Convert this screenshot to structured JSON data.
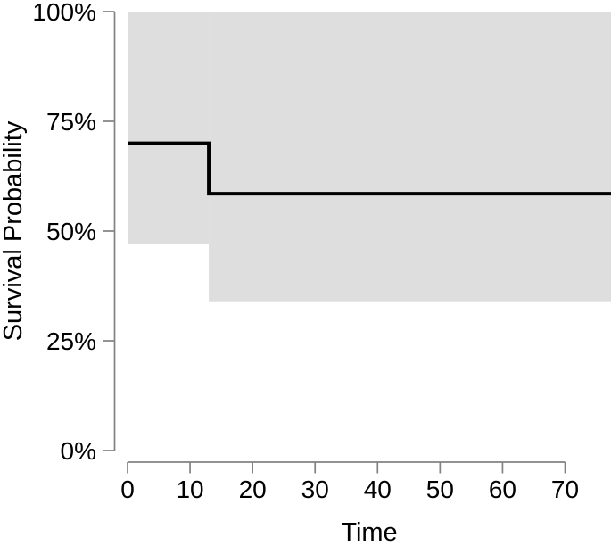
{
  "chart_data": {
    "type": "line",
    "subtype": "kaplan-meier-step",
    "title": "",
    "xlabel": "Time",
    "ylabel": "Survival Probability",
    "xlim": [
      0,
      77.4
    ],
    "ylim": [
      0,
      100
    ],
    "x_ticks": [
      0,
      10,
      20,
      30,
      40,
      50,
      60,
      70
    ],
    "y_ticks": [
      {
        "value": 0,
        "label": "0%"
      },
      {
        "value": 25,
        "label": "25%"
      },
      {
        "value": 50,
        "label": "50%"
      },
      {
        "value": 75,
        "label": "75%"
      },
      {
        "value": 100,
        "label": "100%"
      }
    ],
    "grid": false,
    "legend": false,
    "axis_color": "#828282",
    "background_color": "#ffffff",
    "series": [
      {
        "name": "survival-curve",
        "color": "#000000",
        "line_width": 4,
        "step_points": [
          {
            "x": 0,
            "y": 70
          },
          {
            "x": 13,
            "y": 70
          },
          {
            "x": 13,
            "y": 58.5
          },
          {
            "x": 77.4,
            "y": 58.5
          }
        ]
      }
    ],
    "confidence_band": {
      "color": "#dedede",
      "segments": [
        {
          "x_start": 0,
          "x_end": 13,
          "lower": 47,
          "upper": 100
        },
        {
          "x_start": 13,
          "x_end": 77.4,
          "lower": 34,
          "upper": 100
        }
      ]
    }
  }
}
